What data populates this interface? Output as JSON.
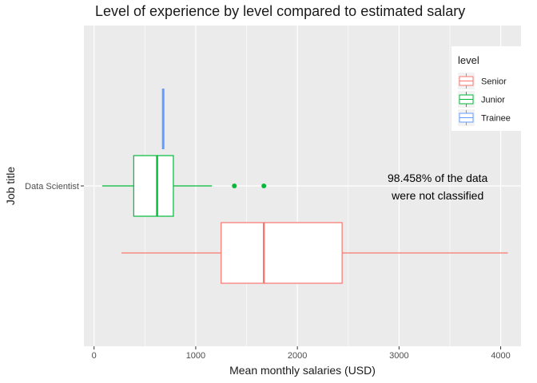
{
  "chart_data": {
    "type": "boxplot",
    "title": "Level of experience by level compared to estimated salary",
    "xlabel": "Mean monthly salaries (USD)",
    "ylabel": "Job title",
    "xlim": [
      -100,
      4200
    ],
    "x_ticks": [
      0,
      1000,
      2000,
      3000,
      4000
    ],
    "x_minor_ticks": [
      500,
      1500,
      2500,
      3500
    ],
    "categories": [
      "Data Scientist"
    ],
    "grid": true,
    "legend": {
      "title": "level",
      "position": "top-right"
    },
    "series": [
      {
        "name": "Senior",
        "color": "#F8766D",
        "min": 270,
        "q1": 1250,
        "median": 1670,
        "q3": 2440,
        "max": 4070,
        "outliers": []
      },
      {
        "name": "Junior",
        "color": "#00BA38",
        "min": 80,
        "q1": 390,
        "median": 620,
        "q3": 780,
        "max": 1160,
        "outliers": [
          1380,
          1670
        ]
      },
      {
        "name": "Trainee",
        "color": "#619CFF",
        "min": 680,
        "q1": 680,
        "median": 680,
        "q3": 680,
        "max": 680,
        "outliers": []
      }
    ],
    "annotation": {
      "lines": [
        "98.458% of the data",
        "were not classified"
      ],
      "x": 3380
    }
  }
}
